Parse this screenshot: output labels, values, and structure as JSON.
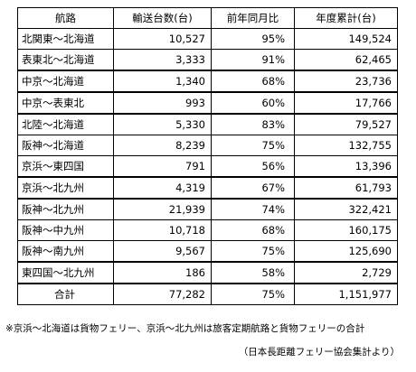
{
  "table": {
    "headers": [
      "航路",
      "輸送台数(台)",
      "前年同月比",
      "年度累計(台)"
    ],
    "rows": [
      {
        "route": "北関東～北海道",
        "count": "10,527",
        "yoy": "95%",
        "cumulative": "149,524"
      },
      {
        "route": "表東北～北海道",
        "count": "3,333",
        "yoy": "91%",
        "cumulative": "62,465"
      },
      {
        "route": "中京～北海道",
        "count": "1,340",
        "yoy": "68%",
        "cumulative": "23,736"
      },
      {
        "route": "中京～表東北",
        "count": "993",
        "yoy": "60%",
        "cumulative": "17,766"
      },
      {
        "route": "北陸～北海道",
        "count": "5,330",
        "yoy": "83%",
        "cumulative": "79,527"
      },
      {
        "route": "阪神～北海道",
        "count": "8,239",
        "yoy": "75%",
        "cumulative": "132,755"
      },
      {
        "route": "京浜～東四国",
        "count": "791",
        "yoy": "56%",
        "cumulative": "13,396"
      },
      {
        "route": "京浜～北九州",
        "count": "4,319",
        "yoy": "67%",
        "cumulative": "61,793"
      },
      {
        "route": "阪神～北九州",
        "count": "21,939",
        "yoy": "74%",
        "cumulative": "322,421"
      },
      {
        "route": "阪神～中九州",
        "count": "10,718",
        "yoy": "68%",
        "cumulative": "160,175"
      },
      {
        "route": "阪神～南九州",
        "count": "9,567",
        "yoy": "75%",
        "cumulative": "125,690"
      },
      {
        "route": "東四国～北九州",
        "count": "186",
        "yoy": "58%",
        "cumulative": "2,729"
      }
    ],
    "total": {
      "route": "合計",
      "count": "77,282",
      "yoy": "75%",
      "cumulative": "1,151,977"
    }
  },
  "note": "※京浜～北海道は貨物フェリー、京浜～北九州は旅客定期航路と貨物フェリーの合計",
  "source": "（日本長距離フェリー協会集計より）"
}
